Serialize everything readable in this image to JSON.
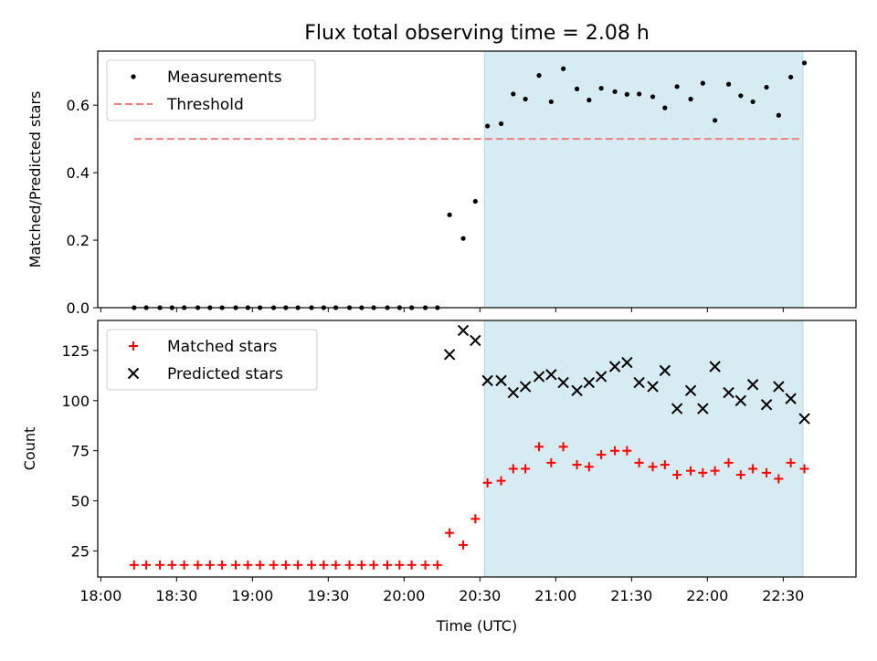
{
  "title": "Flux total observing time = 2.08 h",
  "chart_data": [
    {
      "type": "scatter",
      "ylabel": "Matched/Predicted stars",
      "ylim": [
        0,
        0.76
      ],
      "yticks": [
        "0.0",
        "0.2",
        "0.4",
        "0.6"
      ],
      "ytick_values": [
        0,
        0.2,
        0.4,
        0.6
      ],
      "legend": [
        "Measurements",
        "Threshold"
      ],
      "legend_position": "top-left",
      "shaded_region": [
        20.53,
        22.63
      ],
      "threshold": {
        "name": "Threshold",
        "value": 0.5,
        "x_start": 18.22,
        "x_end": 22.63,
        "color": "#f08080"
      },
      "series": [
        {
          "name": "Measurements",
          "x": [
            18.22,
            18.3,
            18.39,
            18.47,
            18.55,
            18.64,
            18.72,
            18.8,
            18.89,
            18.97,
            19.05,
            19.14,
            19.22,
            19.3,
            19.39,
            19.47,
            19.55,
            19.64,
            19.72,
            19.8,
            19.89,
            19.97,
            20.05,
            20.14,
            20.22,
            20.3,
            20.39,
            20.47,
            20.55,
            20.64,
            20.72,
            20.8,
            20.89,
            20.97,
            21.05,
            21.14,
            21.22,
            21.3,
            21.39,
            21.47,
            21.55,
            21.64,
            21.72,
            21.8,
            21.89,
            21.97,
            22.05,
            22.14,
            22.22,
            22.3,
            22.39,
            22.47,
            22.55,
            22.64
          ],
          "y": [
            0,
            0,
            0,
            0,
            0,
            0,
            0,
            0,
            0,
            0,
            0,
            0,
            0,
            0,
            0,
            0,
            0,
            0,
            0,
            0,
            0,
            0,
            0,
            0,
            0,
            0.275,
            0.205,
            0.315,
            0.538,
            0.545,
            0.633,
            0.618,
            0.688,
            0.61,
            0.708,
            0.648,
            0.615,
            0.65,
            0.64,
            0.632,
            0.633,
            0.625,
            0.592,
            0.655,
            0.618,
            0.665,
            0.555,
            0.662,
            0.628,
            0.61,
            0.653,
            0.57,
            0.683,
            0.725
          ],
          "marker": "dot",
          "color": "#000000"
        }
      ]
    },
    {
      "type": "scatter",
      "xlabel": "Time (UTC)",
      "ylabel": "Count",
      "ylim": [
        12,
        140
      ],
      "yticks": [
        "25",
        "50",
        "75",
        "100",
        "125"
      ],
      "ytick_values": [
        25,
        50,
        75,
        100,
        125
      ],
      "xlim": [
        17.98,
        22.98
      ],
      "xticks": [
        "18:00",
        "18:30",
        "19:00",
        "19:30",
        "20:00",
        "20:30",
        "21:00",
        "21:30",
        "22:00",
        "22:30"
      ],
      "xtick_values": [
        18,
        18.5,
        19,
        19.5,
        20,
        20.5,
        21,
        21.5,
        22,
        22.5
      ],
      "legend": [
        "Matched stars",
        "Predicted stars"
      ],
      "legend_position": "top-left",
      "shaded_region": [
        20.53,
        22.63
      ],
      "series": [
        {
          "name": "Matched stars",
          "x": [
            18.22,
            18.3,
            18.39,
            18.47,
            18.55,
            18.64,
            18.72,
            18.8,
            18.89,
            18.97,
            19.05,
            19.14,
            19.22,
            19.3,
            19.39,
            19.47,
            19.55,
            19.64,
            19.72,
            19.8,
            19.89,
            19.97,
            20.05,
            20.14,
            20.22,
            20.3,
            20.39,
            20.47,
            20.55,
            20.64,
            20.72,
            20.8,
            20.89,
            20.97,
            21.05,
            21.14,
            21.22,
            21.3,
            21.39,
            21.47,
            21.55,
            21.64,
            21.72,
            21.8,
            21.89,
            21.97,
            22.05,
            22.14,
            22.22,
            22.3,
            22.39,
            22.47,
            22.55,
            22.64
          ],
          "y": [
            18,
            18,
            18,
            18,
            18,
            18,
            18,
            18,
            18,
            18,
            18,
            18,
            18,
            18,
            18,
            18,
            18,
            18,
            18,
            18,
            18,
            18,
            18,
            18,
            18,
            34,
            28,
            41,
            59,
            60,
            66,
            66,
            77,
            69,
            77,
            68,
            67,
            73,
            75,
            75,
            69,
            67,
            68,
            63,
            65,
            64,
            65,
            69,
            63,
            66,
            64,
            61,
            69,
            66
          ],
          "marker": "plus",
          "color": "#ff0000"
        },
        {
          "name": "Predicted stars",
          "x": [
            20.3,
            20.39,
            20.47,
            20.55,
            20.64,
            20.72,
            20.8,
            20.89,
            20.97,
            21.05,
            21.14,
            21.22,
            21.3,
            21.39,
            21.47,
            21.55,
            21.64,
            21.72,
            21.8,
            21.89,
            21.97,
            22.05,
            22.14,
            22.22,
            22.3,
            22.39,
            22.47,
            22.55,
            22.64
          ],
          "y": [
            123,
            135,
            130,
            110,
            110,
            104,
            107,
            112,
            113,
            109,
            105,
            109,
            112,
            117,
            119,
            109,
            107,
            115,
            96,
            105,
            96,
            117,
            104,
            100,
            108,
            98,
            107,
            101,
            91
          ],
          "marker": "x",
          "color": "#000000"
        }
      ]
    }
  ],
  "colors": {
    "shade": "#add8e6",
    "threshold": "#f08080",
    "matched": "#ff0000",
    "predicted": "#000000",
    "measurement": "#000000"
  }
}
